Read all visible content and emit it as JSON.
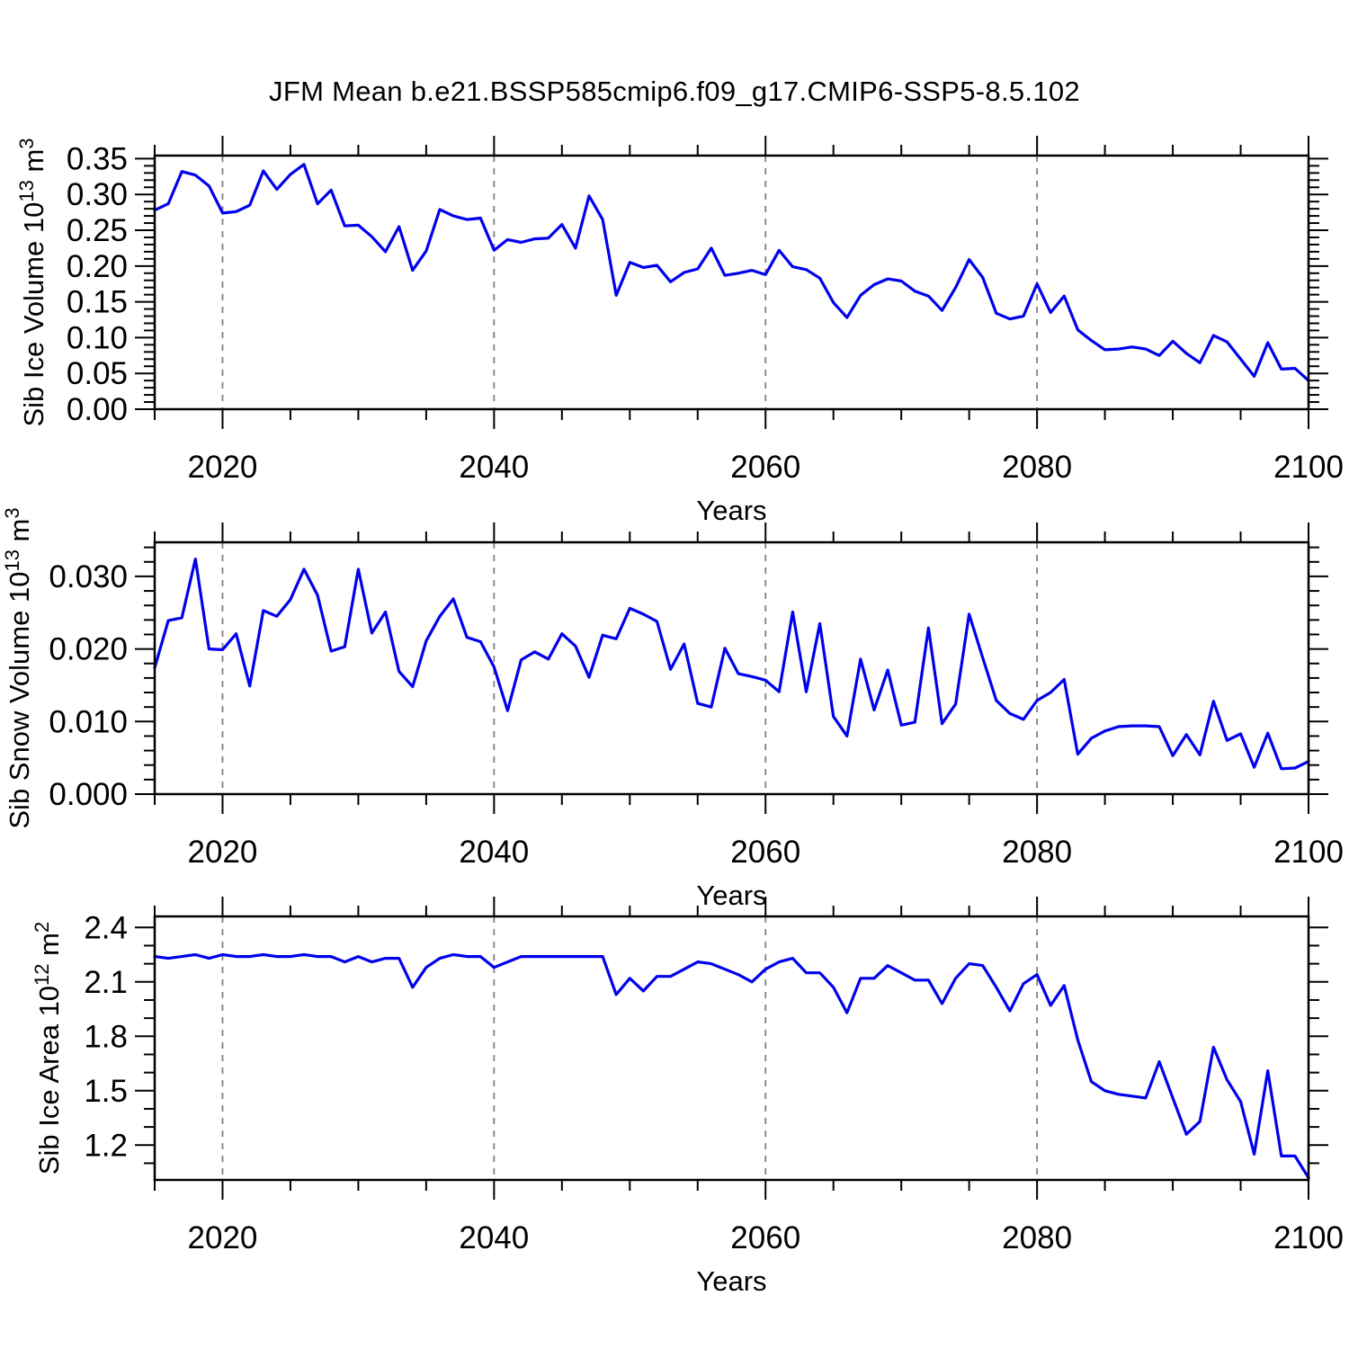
{
  "page": {
    "title": "JFM Mean b.e21.BSSP585cmip6.f09_g17.CMIP6-SSP5-8.5.102"
  },
  "colors": {
    "line": "#0000EE",
    "frame": "#000000",
    "grid": "#808080",
    "background": "#ffffff",
    "text": "#000000"
  },
  "years": [
    2015,
    2016,
    2017,
    2018,
    2019,
    2020,
    2021,
    2022,
    2023,
    2024,
    2025,
    2026,
    2027,
    2028,
    2029,
    2030,
    2031,
    2032,
    2033,
    2034,
    2035,
    2036,
    2037,
    2038,
    2039,
    2040,
    2041,
    2042,
    2043,
    2044,
    2045,
    2046,
    2047,
    2048,
    2049,
    2050,
    2051,
    2052,
    2053,
    2054,
    2055,
    2056,
    2057,
    2058,
    2059,
    2060,
    2061,
    2062,
    2063,
    2064,
    2065,
    2066,
    2067,
    2068,
    2069,
    2070,
    2071,
    2072,
    2073,
    2074,
    2075,
    2076,
    2077,
    2078,
    2079,
    2080,
    2081,
    2082,
    2083,
    2084,
    2085,
    2086,
    2087,
    2088,
    2089,
    2090,
    2091,
    2092,
    2093,
    2094,
    2095,
    2096,
    2097,
    2098,
    2099,
    2100
  ],
  "chart_data": [
    {
      "type": "line",
      "title": "",
      "xlabel": "Years",
      "ylabel": "Sib Ice Volume 10^13 m^3",
      "ylabel_parts": [
        {
          "t": "Sib Ice Volume 10"
        },
        {
          "t": "13",
          "sup": true
        },
        {
          "t": " m"
        },
        {
          "t": "3",
          "sup": true
        }
      ],
      "xlim": [
        2015,
        2100
      ],
      "ylim": [
        0.0,
        0.3543
      ],
      "xticks": [
        {
          "value": 2020,
          "label": "2020"
        },
        {
          "value": 2040,
          "label": "2040"
        },
        {
          "value": 2060,
          "label": "2060"
        },
        {
          "value": 2080,
          "label": "2080"
        },
        {
          "value": 2100,
          "label": "2100"
        }
      ],
      "xminor_step": 5,
      "yticks": [
        {
          "value": 0.0,
          "label": "0.00"
        },
        {
          "value": 0.05,
          "label": "0.05"
        },
        {
          "value": 0.1,
          "label": "0.10"
        },
        {
          "value": 0.15,
          "label": "0.15"
        },
        {
          "value": 0.2,
          "label": "0.20"
        },
        {
          "value": 0.25,
          "label": "0.25"
        },
        {
          "value": 0.3,
          "label": "0.30"
        },
        {
          "value": 0.35,
          "label": "0.35"
        }
      ],
      "yminor_step": 0.01,
      "gridlines_x": [
        2020,
        2040,
        2060,
        2080
      ],
      "grid": "vertical-dashed",
      "legend": "none",
      "values": [
        0.278,
        0.287,
        0.332,
        0.327,
        0.312,
        0.274,
        0.276,
        0.285,
        0.333,
        0.307,
        0.328,
        0.342,
        0.287,
        0.306,
        0.256,
        0.257,
        0.241,
        0.22,
        0.255,
        0.194,
        0.221,
        0.279,
        0.27,
        0.265,
        0.267,
        0.222,
        0.237,
        0.233,
        0.238,
        0.239,
        0.258,
        0.225,
        0.298,
        0.265,
        0.159,
        0.205,
        0.198,
        0.201,
        0.178,
        0.191,
        0.196,
        0.225,
        0.187,
        0.19,
        0.194,
        0.188,
        0.222,
        0.199,
        0.195,
        0.183,
        0.149,
        0.128,
        0.159,
        0.174,
        0.182,
        0.179,
        0.165,
        0.158,
        0.138,
        0.17,
        0.209,
        0.184,
        0.134,
        0.126,
        0.13,
        0.175,
        0.135,
        0.158,
        0.111,
        0.096,
        0.083,
        0.084,
        0.087,
        0.084,
        0.075,
        0.095,
        0.078,
        0.065,
        0.103,
        0.094,
        0.07,
        0.046,
        0.093,
        0.056,
        0.057,
        0.04
      ]
    },
    {
      "type": "line",
      "title": "",
      "xlabel": "Years",
      "ylabel": "Sib Snow Volume 10^13 m^3",
      "ylabel_parts": [
        {
          "t": "Sib Snow Volume 10"
        },
        {
          "t": "13",
          "sup": true
        },
        {
          "t": " m"
        },
        {
          "t": "3",
          "sup": true
        }
      ],
      "xlim": [
        2015,
        2100
      ],
      "ylim": [
        0.0,
        0.0347
      ],
      "xticks": [
        {
          "value": 2020,
          "label": "2020"
        },
        {
          "value": 2040,
          "label": "2040"
        },
        {
          "value": 2060,
          "label": "2060"
        },
        {
          "value": 2080,
          "label": "2080"
        },
        {
          "value": 2100,
          "label": "2100"
        }
      ],
      "xminor_step": 5,
      "yticks": [
        {
          "value": 0.0,
          "label": "0.000"
        },
        {
          "value": 0.01,
          "label": "0.010"
        },
        {
          "value": 0.02,
          "label": "0.020"
        },
        {
          "value": 0.03,
          "label": "0.030"
        }
      ],
      "yminor_step": 0.002,
      "gridlines_x": [
        2020,
        2040,
        2060,
        2080
      ],
      "grid": "vertical-dashed",
      "legend": "none",
      "values": [
        0.0174,
        0.0239,
        0.0243,
        0.0324,
        0.02,
        0.0199,
        0.0221,
        0.0149,
        0.0253,
        0.0245,
        0.0268,
        0.031,
        0.0274,
        0.0197,
        0.0203,
        0.031,
        0.0222,
        0.0251,
        0.0169,
        0.0148,
        0.0211,
        0.0245,
        0.0269,
        0.0216,
        0.021,
        0.0175,
        0.0115,
        0.0185,
        0.0196,
        0.0186,
        0.0221,
        0.0204,
        0.0161,
        0.0219,
        0.0214,
        0.0256,
        0.0248,
        0.0238,
        0.0172,
        0.0207,
        0.0125,
        0.012,
        0.0201,
        0.0166,
        0.0162,
        0.0157,
        0.0141,
        0.0251,
        0.0141,
        0.0235,
        0.0107,
        0.008,
        0.0186,
        0.0116,
        0.0171,
        0.0095,
        0.0099,
        0.0229,
        0.0097,
        0.0124,
        0.0248,
        0.0188,
        0.0129,
        0.0111,
        0.0103,
        0.0129,
        0.014,
        0.0158,
        0.0055,
        0.0077,
        0.0087,
        0.0093,
        0.0094,
        0.0094,
        0.0093,
        0.0053,
        0.0082,
        0.0054,
        0.0128,
        0.0074,
        0.0083,
        0.0037,
        0.0084,
        0.0035,
        0.0036,
        0.0045
      ]
    },
    {
      "type": "line",
      "title": "",
      "xlabel": "Years",
      "ylabel": "Sib Ice Area 10^12 m^2",
      "ylabel_parts": [
        {
          "t": "Sib Ice Area 10"
        },
        {
          "t": "12",
          "sup": true
        },
        {
          "t": " m"
        },
        {
          "t": "2",
          "sup": true
        }
      ],
      "xlim": [
        2015,
        2100
      ],
      "ylim": [
        1.008,
        2.461
      ],
      "xticks": [
        {
          "value": 2020,
          "label": "2020"
        },
        {
          "value": 2040,
          "label": "2040"
        },
        {
          "value": 2060,
          "label": "2060"
        },
        {
          "value": 2080,
          "label": "2080"
        },
        {
          "value": 2100,
          "label": "2100"
        }
      ],
      "xminor_step": 5,
      "yticks": [
        {
          "value": 1.2,
          "label": "1.2"
        },
        {
          "value": 1.5,
          "label": "1.5"
        },
        {
          "value": 1.8,
          "label": "1.8"
        },
        {
          "value": 2.1,
          "label": "2.1"
        },
        {
          "value": 2.4,
          "label": "2.4"
        }
      ],
      "yminor_step": 0.1,
      "gridlines_x": [
        2020,
        2040,
        2060,
        2080
      ],
      "grid": "vertical-dashed",
      "legend": "none",
      "values": [
        2.24,
        2.23,
        2.24,
        2.25,
        2.23,
        2.25,
        2.24,
        2.24,
        2.25,
        2.24,
        2.24,
        2.25,
        2.24,
        2.24,
        2.21,
        2.24,
        2.21,
        2.23,
        2.23,
        2.07,
        2.18,
        2.23,
        2.25,
        2.24,
        2.24,
        2.18,
        2.21,
        2.24,
        2.24,
        2.24,
        2.24,
        2.24,
        2.24,
        2.24,
        2.03,
        2.12,
        2.05,
        2.13,
        2.13,
        2.17,
        2.21,
        2.2,
        2.17,
        2.14,
        2.1,
        2.17,
        2.21,
        2.23,
        2.15,
        2.15,
        2.07,
        1.93,
        2.12,
        2.12,
        2.19,
        2.15,
        2.11,
        2.11,
        1.98,
        2.12,
        2.2,
        2.19,
        2.07,
        1.94,
        2.09,
        2.14,
        1.97,
        2.08,
        1.78,
        1.55,
        1.5,
        1.48,
        1.47,
        1.46,
        1.66,
        1.46,
        1.26,
        1.33,
        1.74,
        1.56,
        1.44,
        1.15,
        1.61,
        1.14,
        1.14,
        1.02
      ]
    }
  ]
}
